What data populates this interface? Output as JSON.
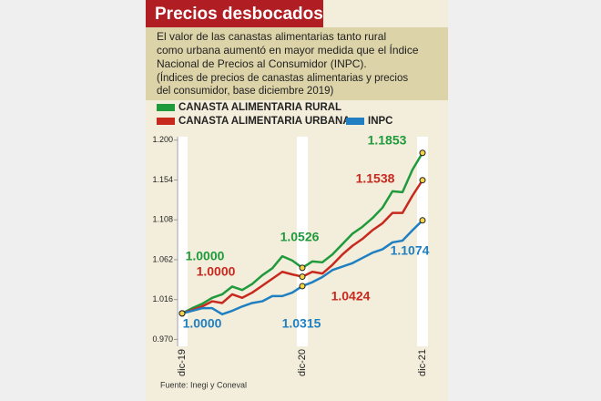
{
  "chart_data": {
    "type": "line",
    "title": "Precios desbocados",
    "subtitle": [
      "El valor de las canastas alimentarias tanto rural",
      "como urbana aumentó en mayor medida que el Índice",
      "Nacional de Precios al Consumidor (INPC)."
    ],
    "note": [
      "(Índices de precios de canastas alimentarias y precios",
      "del consumidor, base diciembre 2019)"
    ],
    "source": "Fuente: Inegi y Coneval",
    "categories": [
      "dic-19",
      null,
      null,
      null,
      null,
      null,
      null,
      null,
      null,
      null,
      null,
      null,
      "dic-20",
      null,
      null,
      null,
      null,
      null,
      null,
      null,
      null,
      null,
      null,
      null,
      "dic-21"
    ],
    "ylim": [
      0.962,
      1.204
    ],
    "yticks": [
      {
        "value": 0.97,
        "label": "0.970"
      },
      1.016,
      1.062,
      1.108,
      1.154,
      {
        "value": 1.2,
        "label": "1.200"
      }
    ],
    "series": [
      {
        "name": "CANASTA ALIMENTARIA RURAL",
        "color": "#1f9a3c",
        "values": [
          1.0,
          1.006,
          1.011,
          1.018,
          1.022,
          1.031,
          1.027,
          1.034,
          1.044,
          1.052,
          1.066,
          1.061,
          1.0526,
          1.06,
          1.059,
          1.068,
          1.08,
          1.092,
          1.1,
          1.11,
          1.122,
          1.141,
          1.14,
          1.166,
          1.1853
        ],
        "value_labels": [
          "1.0000",
          null,
          null,
          null,
          null,
          null,
          null,
          null,
          null,
          null,
          null,
          null,
          "1.0526",
          null,
          null,
          null,
          null,
          null,
          null,
          null,
          null,
          null,
          null,
          null,
          "1.1853"
        ]
      },
      {
        "name": "CANASTA ALIMENTARIA URBANA",
        "color": "#c8291f",
        "values": [
          1.0,
          1.004,
          1.008,
          1.014,
          1.012,
          1.022,
          1.018,
          1.024,
          1.032,
          1.04,
          1.048,
          1.045,
          1.0424,
          1.048,
          1.046,
          1.056,
          1.068,
          1.078,
          1.086,
          1.096,
          1.104,
          1.116,
          1.116,
          1.136,
          1.1538
        ],
        "value_labels": [
          "1.0000",
          null,
          null,
          null,
          null,
          null,
          null,
          null,
          null,
          null,
          null,
          null,
          "1.0424",
          null,
          null,
          null,
          null,
          null,
          null,
          null,
          null,
          null,
          null,
          null,
          "1.1538"
        ]
      },
      {
        "name": "INPC",
        "color": "#1f7fc1",
        "values": [
          1.0,
          1.003,
          1.006,
          1.006,
          0.999,
          1.003,
          1.008,
          1.012,
          1.014,
          1.02,
          1.02,
          1.024,
          1.0315,
          1.036,
          1.042,
          1.05,
          1.054,
          1.058,
          1.064,
          1.07,
          1.074,
          1.082,
          1.084,
          1.096,
          1.1074
        ],
        "value_labels": [
          "1.0000",
          null,
          null,
          null,
          null,
          null,
          null,
          null,
          null,
          null,
          null,
          null,
          "1.0315",
          null,
          null,
          null,
          null,
          null,
          null,
          null,
          null,
          null,
          null,
          null,
          "1.1074"
        ]
      }
    ]
  }
}
